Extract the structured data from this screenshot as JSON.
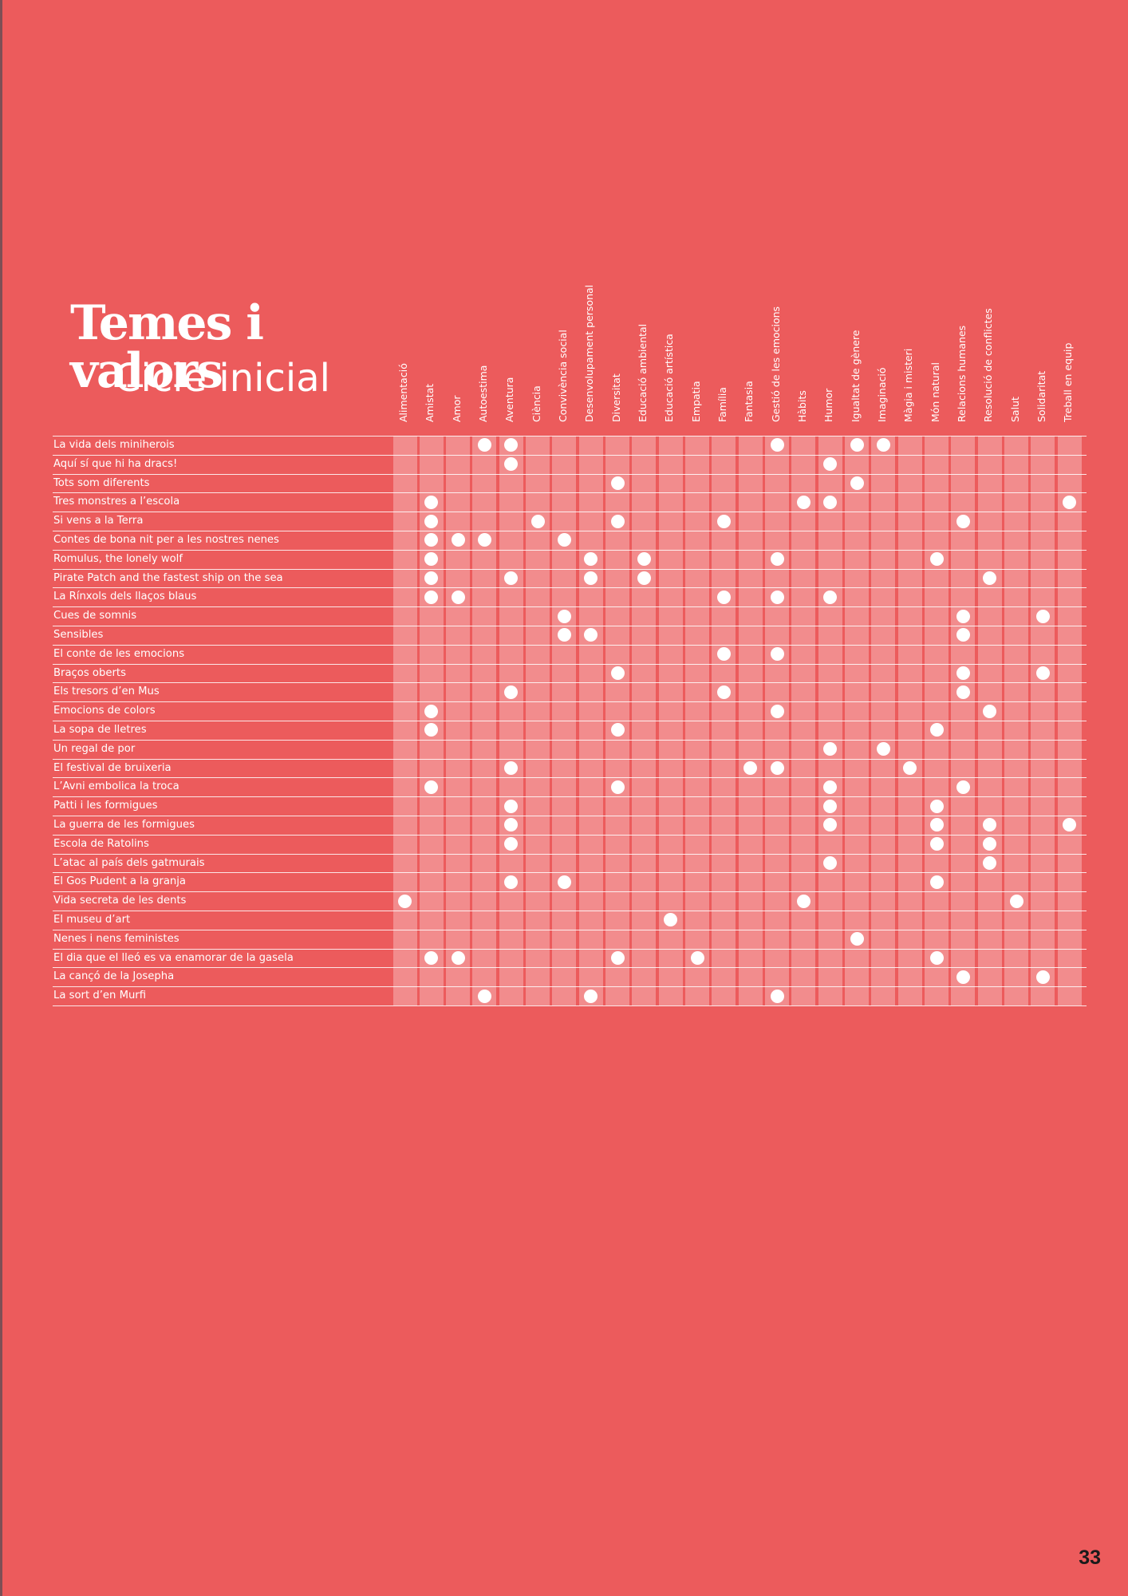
{
  "title": {
    "line1": "Temes i valors",
    "line2": "Cicle inicial"
  },
  "page_number": "33",
  "colors": {
    "background": "#EC5B5C",
    "foreground": "#FFFFFF",
    "page_number": "#1A1A1A"
  },
  "columns": [
    "Alimentació",
    "Amistat",
    "Amor",
    "Autoestima",
    "Aventura",
    "Ciència",
    "Convivència social",
    "Desenvolupament personal",
    "Diversitat",
    "Educació ambiental",
    "Educació artística",
    "Empatia",
    "Família",
    "Fantasia",
    "Gestió de les emocions",
    "Hàbits",
    "Humor",
    "Igualtat de gènere",
    "Imaginació",
    "Màgia i misteri",
    "Món natural",
    "Relacions humanes",
    "Resolució de conflictes",
    "Salut",
    "Solidaritat",
    "Treball en equip"
  ],
  "rows": [
    {
      "title": "La vida dels miniherois",
      "themes": [
        "Autoestima",
        "Aventura",
        "Gestió de les emocions",
        "Igualtat de gènere",
        "Imaginació"
      ]
    },
    {
      "title": "Aquí sí que hi ha dracs!",
      "themes": [
        "Aventura",
        "Humor"
      ]
    },
    {
      "title": "Tots som diferents",
      "themes": [
        "Diversitat",
        "Igualtat de gènere"
      ]
    },
    {
      "title": "Tres monstres a l’escola",
      "themes": [
        "Amistat",
        "Hàbits",
        "Humor",
        "Treball en equip"
      ]
    },
    {
      "title": "Si vens a la Terra",
      "themes": [
        "Amistat",
        "Ciència",
        "Diversitat",
        "Família",
        "Relacions humanes"
      ]
    },
    {
      "title": "Contes de bona nit per a les nostres nenes",
      "themes": [
        "Amistat",
        "Amor",
        "Autoestima",
        "Convivència social"
      ]
    },
    {
      "title": "Romulus, the lonely wolf",
      "themes": [
        "Amistat",
        "Desenvolupament personal",
        "Educació ambiental",
        "Gestió de les emocions",
        "Món natural"
      ]
    },
    {
      "title": "Pirate Patch and the fastest ship on the sea",
      "themes": [
        "Amistat",
        "Aventura",
        "Desenvolupament personal",
        "Educació ambiental",
        "Resolució de conflictes"
      ]
    },
    {
      "title": "La Rínxols dels llaços blaus",
      "themes": [
        "Amistat",
        "Amor",
        "Família",
        "Gestió de les emocions",
        "Humor"
      ]
    },
    {
      "title": "Cues de somnis",
      "themes": [
        "Convivència social",
        "Relacions humanes",
        "Solidaritat"
      ]
    },
    {
      "title": "Sensibles",
      "themes": [
        "Convivència social",
        "Desenvolupament personal",
        "Relacions humanes"
      ]
    },
    {
      "title": "El conte de les emocions",
      "themes": [
        "Família",
        "Gestió de les emocions"
      ]
    },
    {
      "title": "Braços oberts",
      "themes": [
        "Diversitat",
        "Relacions humanes",
        "Solidaritat"
      ]
    },
    {
      "title": "Els tresors d’en Mus",
      "themes": [
        "Aventura",
        "Família",
        "Relacions humanes"
      ]
    },
    {
      "title": "Emocions de colors",
      "themes": [
        "Amistat",
        "Gestió de les emocions",
        "Resolució de conflictes"
      ]
    },
    {
      "title": "La sopa de lletres",
      "themes": [
        "Amistat",
        "Diversitat",
        "Món natural"
      ]
    },
    {
      "title": "Un regal de por",
      "themes": [
        "Humor",
        "Imaginació"
      ]
    },
    {
      "title": "El festival de bruixeria",
      "themes": [
        "Aventura",
        "Fantasia",
        "Gestió de les emocions",
        "Màgia i misteri"
      ]
    },
    {
      "title": "L’Avni embolica la troca",
      "themes": [
        "Amistat",
        "Diversitat",
        "Humor",
        "Relacions humanes"
      ]
    },
    {
      "title": "Patti i les formigues",
      "themes": [
        "Aventura",
        "Humor",
        "Món natural"
      ]
    },
    {
      "title": "La guerra de les formigues",
      "themes": [
        "Aventura",
        "Humor",
        "Món natural",
        "Resolució de conflictes",
        "Treball en equip"
      ]
    },
    {
      "title": "Escola de Ratolins",
      "themes": [
        "Aventura",
        "Món natural",
        "Resolució de conflictes"
      ]
    },
    {
      "title": "L’atac al país dels gatmurais",
      "themes": [
        "Humor",
        "Resolució de conflictes"
      ]
    },
    {
      "title": "El Gos Pudent a la granja",
      "themes": [
        "Aventura",
        "Convivència social",
        "Món natural"
      ]
    },
    {
      "title": "Vida secreta de les dents",
      "themes": [
        "Alimentació",
        "Hàbits",
        "Salut"
      ]
    },
    {
      "title": "El museu d’art",
      "themes": [
        "Educació artística"
      ]
    },
    {
      "title": "Nenes i nens feministes",
      "themes": [
        "Igualtat de gènere"
      ]
    },
    {
      "title": "El dia que el lleó es va enamorar de la gasela",
      "themes": [
        "Amistat",
        "Amor",
        "Diversitat",
        "Empatia",
        "Món natural"
      ]
    },
    {
      "title": "La cançó de la Josepha",
      "themes": [
        "Relacions humanes",
        "Solidaritat"
      ]
    },
    {
      "title": "La sort d’en Murfi",
      "themes": [
        "Autoestima",
        "Desenvolupament personal",
        "Gestió de les emocions"
      ]
    }
  ]
}
